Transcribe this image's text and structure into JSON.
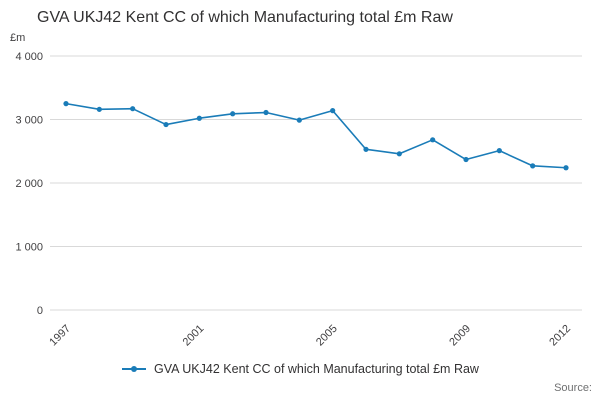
{
  "page": {
    "source_label": "Source:"
  },
  "chart_data": {
    "type": "line",
    "title": "GVA UKJ42 Kent CC of which Manufacturing total £m Raw",
    "ylabel": "£m",
    "xlabel": "",
    "x": [
      1997,
      1998,
      1999,
      2000,
      2001,
      2002,
      2003,
      2004,
      2005,
      2006,
      2007,
      2008,
      2009,
      2010,
      2011,
      2012
    ],
    "values": [
      3250,
      3160,
      3170,
      2920,
      3020,
      3090,
      3110,
      2990,
      3140,
      2530,
      2460,
      2680,
      2370,
      2510,
      2270,
      2240
    ],
    "ylim": [
      0,
      4000
    ],
    "yticks": [
      0,
      1000,
      2000,
      3000,
      4000
    ],
    "ytick_labels": [
      "0",
      "1 000",
      "2 000",
      "3 000",
      "4 000"
    ],
    "xticks": [
      1997,
      2001,
      2005,
      2009,
      2012
    ],
    "xtick_labels": [
      "1997",
      "2001",
      "2005",
      "2009",
      "2012"
    ],
    "grid": true,
    "legend_position": "bottom",
    "legend": {
      "label": "GVA UKJ42 Kent CC of which Manufacturing total £m Raw"
    },
    "colors": {
      "line": "#1a7cb8",
      "grid": "#d9d9d9",
      "tick_text": "#414042",
      "title_text": "#323132",
      "source_text": "#6f7071"
    }
  }
}
